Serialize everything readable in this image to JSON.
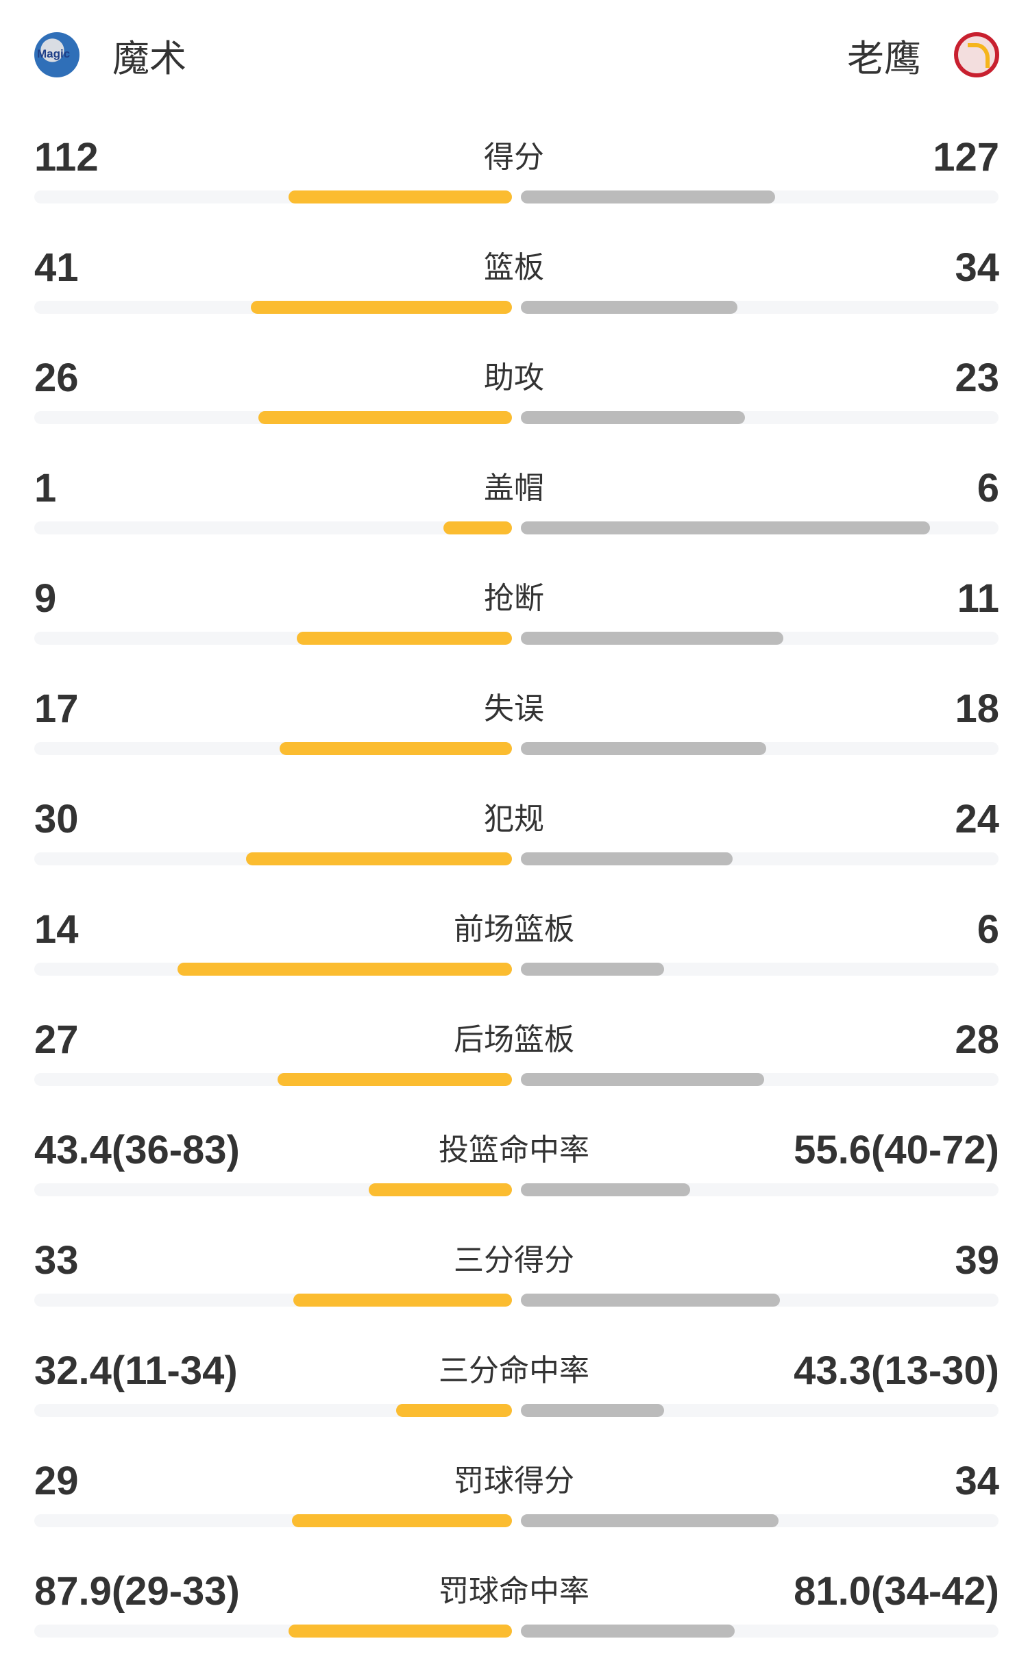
{
  "header": {
    "home_team": {
      "name": "魔术",
      "logo_icon": "orlando-magic-logo",
      "logo_text": "Magic"
    },
    "away_team": {
      "name": "老鹰",
      "logo_icon": "atlanta-hawks-logo"
    }
  },
  "colors": {
    "home_bar": "#fbbc30",
    "away_bar": "#bbbbbb",
    "track": "#f5f6f8",
    "text": "#333333"
  },
  "stats": [
    {
      "label": "得分",
      "home": "112",
      "away": "127",
      "home_fill": 0.468,
      "away_fill": 0.532
    },
    {
      "label": "篮板",
      "home": "41",
      "away": "34",
      "home_fill": 0.547,
      "away_fill": 0.453
    },
    {
      "label": "助攻",
      "home": "26",
      "away": "23",
      "home_fill": 0.531,
      "away_fill": 0.469
    },
    {
      "label": "盖帽",
      "home": "1",
      "away": "6",
      "home_fill": 0.143,
      "away_fill": 0.857
    },
    {
      "label": "抢断",
      "home": "9",
      "away": "11",
      "home_fill": 0.45,
      "away_fill": 0.55
    },
    {
      "label": "失误",
      "home": "17",
      "away": "18",
      "home_fill": 0.486,
      "away_fill": 0.514
    },
    {
      "label": "犯规",
      "home": "30",
      "away": "24",
      "home_fill": 0.556,
      "away_fill": 0.444
    },
    {
      "label": "前场篮板",
      "home": "14",
      "away": "6",
      "home_fill": 0.7,
      "away_fill": 0.3
    },
    {
      "label": "后场篮板",
      "home": "27",
      "away": "28",
      "home_fill": 0.491,
      "away_fill": 0.509
    },
    {
      "label": "投篮命中率",
      "home": "43.4(36-83)",
      "away": "55.6(40-72)",
      "home_fill": 0.3,
      "away_fill": 0.355
    },
    {
      "label": "三分得分",
      "home": "33",
      "away": "39",
      "home_fill": 0.458,
      "away_fill": 0.542
    },
    {
      "label": "三分命中率",
      "home": "32.4(11-34)",
      "away": "43.3(13-30)",
      "home_fill": 0.243,
      "away_fill": 0.3
    },
    {
      "label": "罚球得分",
      "home": "29",
      "away": "34",
      "home_fill": 0.46,
      "away_fill": 0.54
    },
    {
      "label": "罚球命中率",
      "home": "87.9(29-33)",
      "away": "81.0(34-42)",
      "home_fill": 0.468,
      "away_fill": 0.448
    }
  ]
}
